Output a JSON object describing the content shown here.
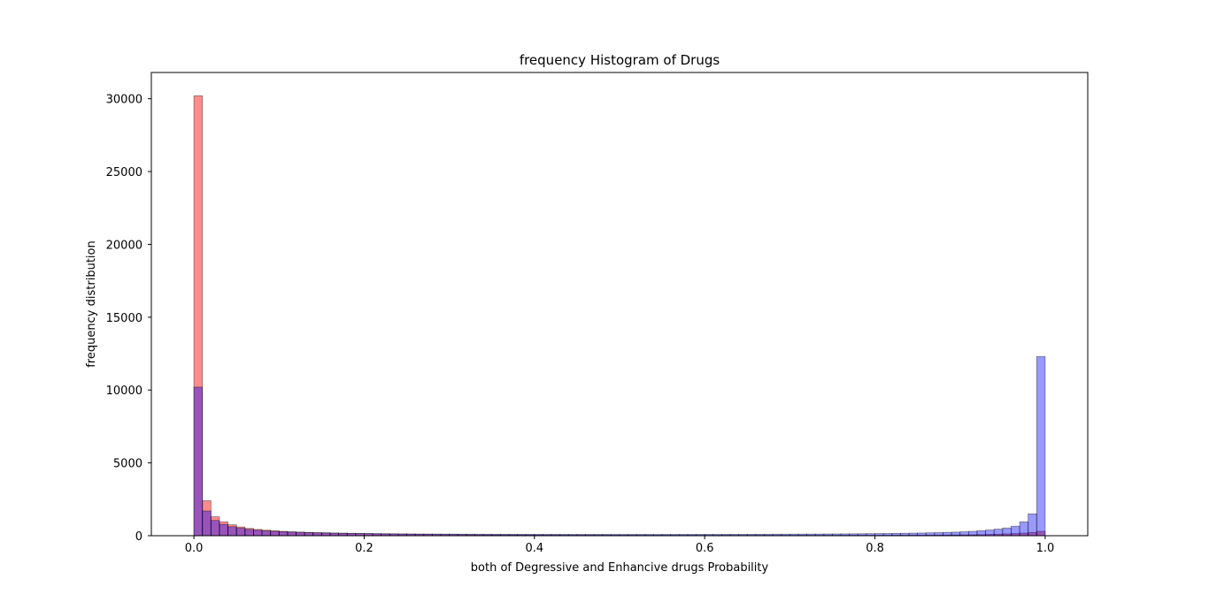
{
  "chart_data": {
    "type": "bar",
    "title": "frequency Histogram of Drugs",
    "xlabel": "both of Degressive and Enhancive drugs Probability",
    "ylabel": "frequency distribution",
    "xlim": [
      -0.05,
      1.05
    ],
    "ylim": [
      0,
      31800
    ],
    "xticks": [
      0.0,
      0.2,
      0.4,
      0.6,
      0.8,
      1.0
    ],
    "xtick_labels": [
      "0.0",
      "0.2",
      "0.4",
      "0.6",
      "0.8",
      "1.0"
    ],
    "yticks": [
      0,
      5000,
      10000,
      15000,
      20000,
      25000,
      30000
    ],
    "ytick_labels": [
      "0",
      "5000",
      "10000",
      "15000",
      "20000",
      "25000",
      "30000"
    ],
    "grid": false,
    "bin_range": [
      0,
      1
    ],
    "bin_count": 100,
    "series": [
      {
        "color": "#ff0000",
        "alpha": 0.45,
        "values": [
          30200,
          2400,
          1300,
          950,
          750,
          600,
          500,
          430,
          380,
          340,
          300,
          270,
          250,
          230,
          210,
          200,
          185,
          170,
          160,
          150,
          140,
          130,
          122,
          115,
          108,
          102,
          96,
          91,
          86,
          82,
          78,
          74,
          70,
          67,
          64,
          61,
          58,
          56,
          54,
          52,
          50,
          48,
          46,
          45,
          43,
          42,
          41,
          40,
          39,
          38,
          37,
          36,
          35,
          34,
          34,
          33,
          33,
          32,
          32,
          31,
          31,
          30,
          30,
          30,
          29,
          29,
          29,
          29,
          28,
          28,
          28,
          28,
          28,
          28,
          28,
          28,
          28,
          28,
          29,
          29,
          30,
          31,
          32,
          33,
          35,
          37,
          40,
          43,
          47,
          52,
          58,
          65,
          75,
          88,
          105,
          125,
          150,
          180,
          220,
          300
        ]
      },
      {
        "color": "#0000ff",
        "alpha": 0.4,
        "values": [
          10200,
          1700,
          1050,
          780,
          620,
          510,
          430,
          370,
          330,
          300,
          270,
          250,
          230,
          215,
          200,
          190,
          180,
          170,
          162,
          155,
          148,
          142,
          137,
          132,
          127,
          123,
          119,
          116,
          113,
          110,
          108,
          106,
          104,
          102,
          100,
          99,
          98,
          97,
          96,
          95,
          94,
          93,
          92,
          92,
          91,
          91,
          90,
          90,
          90,
          90,
          90,
          90,
          90,
          90,
          90,
          91,
          91,
          92,
          92,
          93,
          94,
          95,
          96,
          97,
          98,
          99,
          100,
          102,
          104,
          106,
          108,
          110,
          113,
          116,
          119,
          122,
          126,
          130,
          135,
          140,
          146,
          152,
          159,
          167,
          176,
          186,
          197,
          210,
          225,
          245,
          270,
          300,
          340,
          390,
          450,
          530,
          650,
          950,
          1500,
          12300
        ]
      }
    ]
  }
}
